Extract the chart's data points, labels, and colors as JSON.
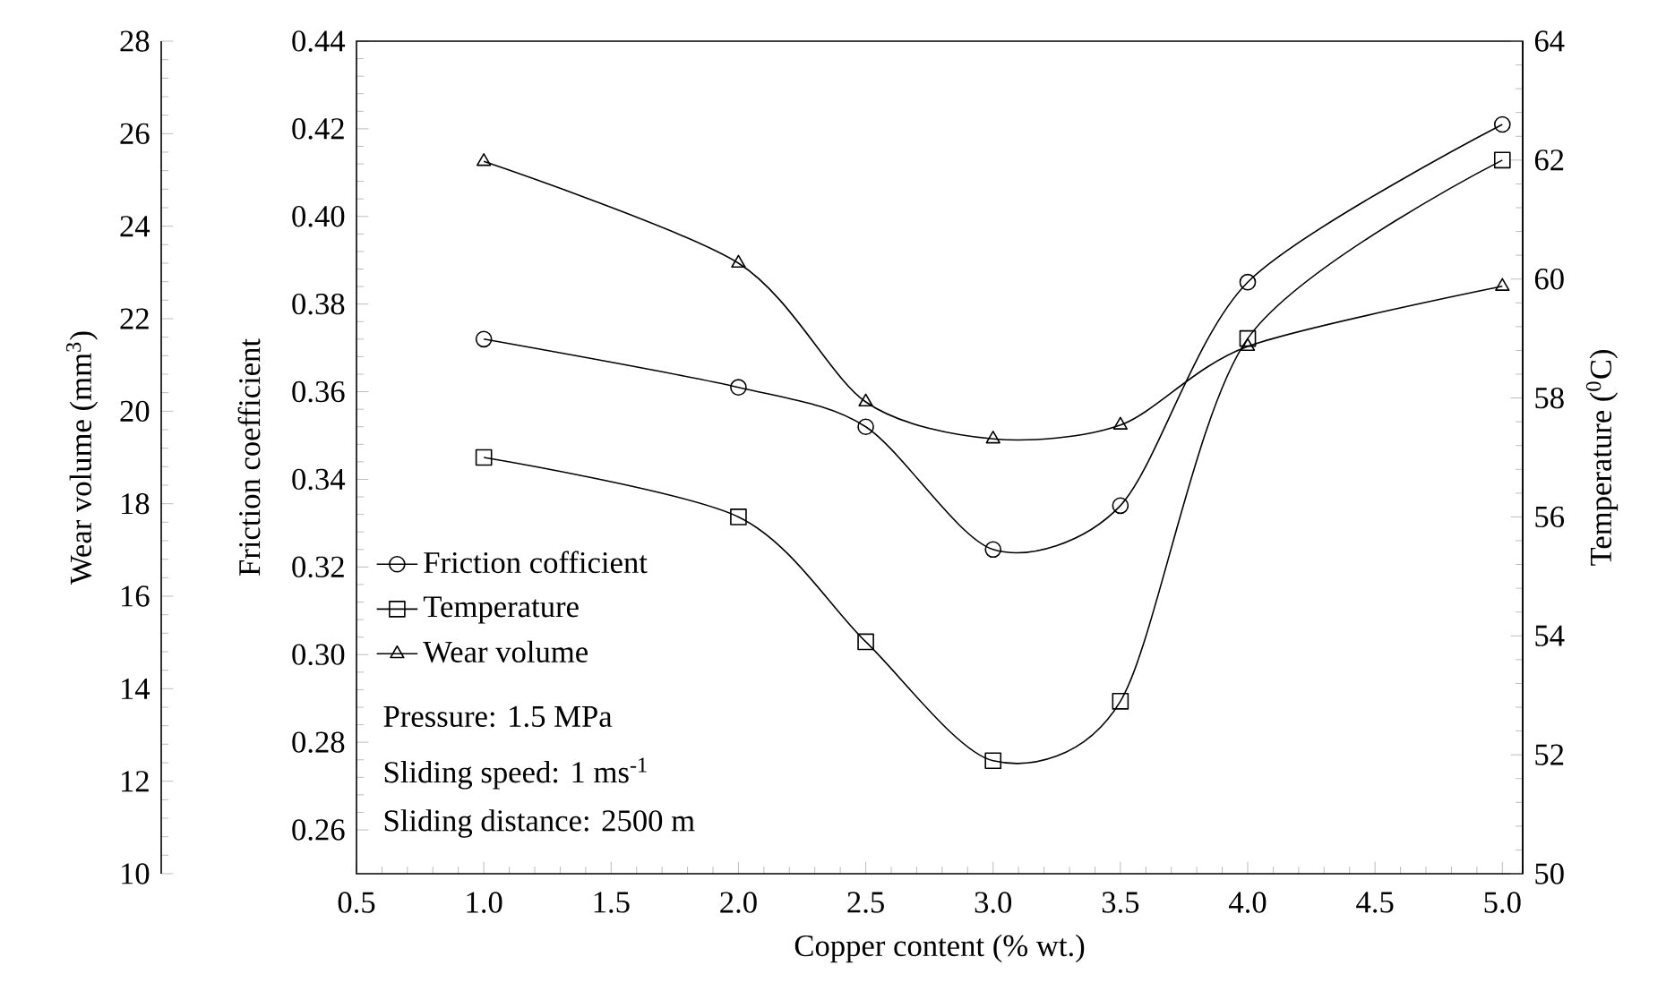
{
  "chart_data": {
    "type": "line",
    "xlabel": "Copper content (% wt.)",
    "ylabel": "Friction coefficient",
    "y2label": "Temperature ($^{0}$C)",
    "y3label": "Wear volume (mm$^{3}$)",
    "xlim": [
      0.5,
      5.08
    ],
    "xticks": [
      {
        "value": 0.5,
        "label": "0.5"
      },
      {
        "value": 1,
        "label": "1.0"
      },
      {
        "value": 1.5,
        "label": "1.5"
      },
      {
        "value": 2,
        "label": "2.0"
      },
      {
        "value": 2.5,
        "label": "2.5"
      },
      {
        "value": 3,
        "label": "3.0"
      },
      {
        "value": 3.5,
        "label": "3.5"
      },
      {
        "value": 4,
        "label": "4.0"
      },
      {
        "value": 4.5,
        "label": "4.5"
      },
      {
        "value": 5,
        "label": "5.0"
      }
    ],
    "ylim": [
      0.25,
      0.44
    ],
    "yticks": [
      {
        "value": 0.26,
        "label": "0.26"
      },
      {
        "value": 0.28,
        "label": "0.28"
      },
      {
        "value": 0.3,
        "label": "0.30"
      },
      {
        "value": 0.32,
        "label": "0.32"
      },
      {
        "value": 0.34,
        "label": "0.34"
      },
      {
        "value": 0.36,
        "label": "0.36"
      },
      {
        "value": 0.38,
        "label": "0.38"
      },
      {
        "value": 0.4,
        "label": "0.40"
      },
      {
        "value": 0.42,
        "label": "0.42"
      },
      {
        "value": 0.44,
        "label": "0.44"
      }
    ],
    "y2lim": [
      50,
      64
    ],
    "y2ticks": [
      50,
      52,
      54,
      56,
      58,
      60,
      62,
      64
    ],
    "y3lim": [
      10,
      28
    ],
    "y3ticks": [
      10,
      12,
      14,
      16,
      18,
      20,
      22,
      24,
      26,
      28
    ],
    "x": [
      1,
      2,
      2.5,
      3,
      3.5,
      4,
      5
    ],
    "series": [
      {
        "name": "Friction cofficient",
        "color": "#000000",
        "marker": "circle",
        "axis": "y",
        "values": [
          0.372,
          0.361,
          0.352,
          0.324,
          0.334,
          0.385,
          0.421
        ]
      },
      {
        "name": "Temperature",
        "color": "#000000",
        "marker": "square",
        "axis": "y2",
        "values": [
          57.0,
          56.0,
          53.9,
          51.9,
          52.9,
          59.0,
          62.0
        ]
      },
      {
        "name": "Wear volume",
        "color": "#000000",
        "marker": "triangle",
        "axis": "y3",
        "values": [
          25.4,
          23.2,
          20.2,
          19.4,
          19.7,
          21.4,
          22.7
        ]
      }
    ],
    "legend": "bottom left",
    "grid": false,
    "line_style": "solid",
    "annotations": [
      "Pressure: 1.5 MPa",
      "Sliding speed: 1 ms$^{-1}$",
      "Sliding distance: 2500 m"
    ]
  }
}
